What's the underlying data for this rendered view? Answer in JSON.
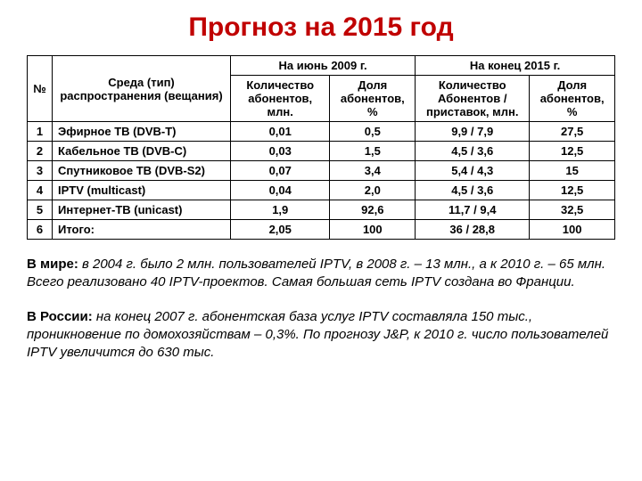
{
  "title": {
    "text": "Прогноз на 2015 год",
    "color": "#c00000",
    "fontsize": 30
  },
  "table": {
    "border_color": "#000000",
    "header_row1": {
      "num": "№",
      "type": "Среда (тип) распространения (вещания)",
      "jun2009": "На июнь 2009 г.",
      "end2015": "На конец 2015 г."
    },
    "header_row2": {
      "a": "Количество абонентов, млн.",
      "b": "Доля абонентов, %",
      "c": "Количество Абонентов / приставок, млн.",
      "d": "Доля абонентов, %"
    },
    "rows": [
      {
        "n": "1",
        "type": "Эфирное ТВ (DVB-T)",
        "a": "0,01",
        "b": "0,5",
        "c": "9,9 / 7,9",
        "d": "27,5"
      },
      {
        "n": "2",
        "type": "Кабельное ТВ (DVB-C)",
        "a": "0,03",
        "b": "1,5",
        "c": "4,5 / 3,6",
        "d": "12,5"
      },
      {
        "n": "3",
        "type": "Спутниковое ТВ (DVB-S2)",
        "a": "0,07",
        "b": "3,4",
        "c": "5,4 / 4,3",
        "d": "15"
      },
      {
        "n": "4",
        "type": "IPTV (multicast)",
        "a": "0,04",
        "b": "2,0",
        "c": "4,5 / 3,6",
        "d": "12,5"
      },
      {
        "n": "5",
        "type": "Интернет-ТВ (unicast)",
        "a": "1,9",
        "b": "92,6",
        "c": "11,7 / 9,4",
        "d": "32,5"
      },
      {
        "n": "6",
        "type": "Итого:",
        "a": "2,05",
        "b": "100",
        "c": "36 / 28,8",
        "d": "100"
      }
    ]
  },
  "p1": {
    "lead": "В мире:",
    "body": " в 2004 г. было 2 млн. пользователей IPTV, в 2008 г. –  13 млн., а к 2010 г. – 65 млн. Всего реализовано 40 IPTV-проектов. Самая большая сеть IPTV создана во Франции."
  },
  "p2": {
    "lead": "В России:",
    "body": " на конец 2007 г. абонентская база услуг IPTV составляла 150 тыс., проникновение по домохозяйствам – 0,3%. По прогнозу J&P, к 2010 г. число пользователей IPTV увеличится до 630 тыс."
  },
  "text_color": "#000000"
}
